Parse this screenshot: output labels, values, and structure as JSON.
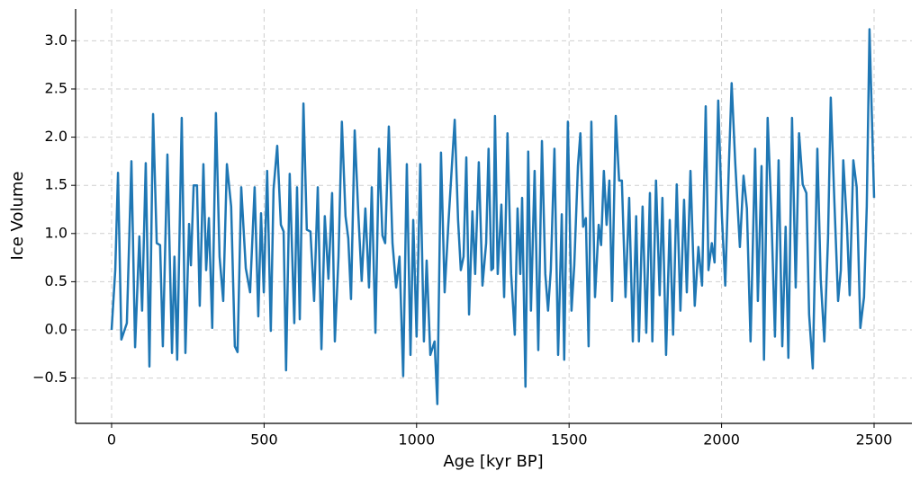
{
  "chart_data": {
    "type": "line",
    "x_label": "Age [kyr BP]",
    "y_label": "Ice Volume",
    "xlim": [
      -118,
      2624
    ],
    "ylim": [
      -0.97,
      3.33
    ],
    "xticks": [
      0,
      500,
      1000,
      1500,
      2000,
      2500
    ],
    "yticks": [
      {
        "value": -0.5,
        "label": "−0.5"
      },
      {
        "value": 0,
        "label": "0.0"
      },
      0.5,
      {
        "value": 1,
        "label": "1.0"
      },
      1.5,
      {
        "value": 2,
        "label": "2.0"
      },
      2.5,
      {
        "value": 3,
        "label": "3.0"
      }
    ],
    "grid": true,
    "x": [
      0,
      12,
      21,
      32,
      50,
      65,
      77,
      91,
      100,
      112,
      124,
      136,
      148,
      159,
      168,
      183,
      198,
      206,
      215,
      230,
      242,
      254,
      260,
      269,
      280,
      289,
      301,
      310,
      319,
      330,
      342,
      354,
      366,
      378,
      392,
      404,
      413,
      425,
      440,
      454,
      469,
      481,
      490,
      499,
      510,
      522,
      531,
      543,
      555,
      564,
      572,
      584,
      599,
      608,
      617,
      629,
      640,
      652,
      664,
      676,
      688,
      699,
      711,
      723,
      732,
      744,
      755,
      767,
      776,
      785,
      797,
      809,
      820,
      832,
      844,
      853,
      865,
      877,
      888,
      897,
      909,
      921,
      933,
      944,
      956,
      968,
      980,
      989,
      1000,
      1012,
      1024,
      1033,
      1045,
      1059,
      1068,
      1080,
      1092,
      1104,
      1118,
      1125,
      1136,
      1145,
      1154,
      1163,
      1172,
      1183,
      1192,
      1204,
      1216,
      1228,
      1236,
      1245,
      1251,
      1257,
      1266,
      1278,
      1287,
      1298,
      1310,
      1322,
      1331,
      1340,
      1346,
      1357,
      1366,
      1375,
      1387,
      1399,
      1411,
      1422,
      1431,
      1440,
      1452,
      1464,
      1476,
      1484,
      1496,
      1508,
      1517,
      1529,
      1537,
      1546,
      1555,
      1564,
      1573,
      1585,
      1597,
      1605,
      1614,
      1623,
      1632,
      1641,
      1653,
      1664,
      1673,
      1685,
      1697,
      1709,
      1720,
      1729,
      1741,
      1753,
      1765,
      1773,
      1785,
      1797,
      1806,
      1818,
      1830,
      1841,
      1853,
      1865,
      1877,
      1886,
      1898,
      1912,
      1924,
      1936,
      1948,
      1957,
      1968,
      1977,
      1989,
      2001,
      2012,
      2024,
      2033,
      2045,
      2060,
      2072,
      2083,
      2095,
      2110,
      2119,
      2131,
      2139,
      2151,
      2163,
      2175,
      2187,
      2199,
      2210,
      2219,
      2231,
      2243,
      2254,
      2266,
      2278,
      2287,
      2299,
      2314,
      2325,
      2337,
      2349,
      2358,
      2370,
      2382,
      2391,
      2399,
      2411,
      2420,
      2432,
      2443,
      2455,
      2467,
      2476,
      2485,
      2500
    ],
    "series": [
      {
        "name": "Ice Volume",
        "color": "#1f77b4",
        "values": [
          0,
          0.62,
          1.63,
          -0.1,
          0.07,
          1.75,
          -0.18,
          0.97,
          0.2,
          1.73,
          -0.38,
          2.24,
          0.9,
          0.88,
          -0.17,
          1.82,
          -0.24,
          0.76,
          -0.31,
          2.2,
          -0.24,
          1.1,
          0.67,
          1.5,
          1.5,
          0.25,
          1.72,
          0.62,
          1.16,
          0.02,
          2.25,
          0.76,
          0.3,
          1.72,
          1.28,
          -0.17,
          -0.23,
          1.48,
          0.64,
          0.39,
          1.48,
          0.14,
          1.21,
          0.39,
          1.65,
          -0.01,
          1.46,
          1.91,
          1.09,
          1.02,
          -0.42,
          1.62,
          0.07,
          1.48,
          0.11,
          2.35,
          1.04,
          1.02,
          0.3,
          1.48,
          -0.2,
          1.18,
          0.53,
          1.42,
          -0.12,
          0.76,
          2.16,
          1.18,
          0.95,
          0.32,
          2.07,
          1.2,
          0.51,
          1.26,
          0.44,
          1.48,
          -0.03,
          1.88,
          0.98,
          0.9,
          2.11,
          0.9,
          0.44,
          0.76,
          -0.48,
          1.72,
          -0.26,
          1.14,
          -0.07,
          1.72,
          -0.12,
          0.72,
          -0.26,
          -0.12,
          -0.77,
          1.84,
          0.39,
          1.09,
          1.82,
          2.18,
          1.14,
          0.62,
          0.76,
          1.79,
          0.16,
          1.23,
          0.58,
          1.74,
          0.46,
          0.9,
          1.88,
          0.62,
          0.64,
          2.22,
          0.58,
          1.3,
          0.34,
          2.04,
          0.58,
          -0.05,
          1.26,
          0.58,
          1.37,
          -0.59,
          1.85,
          0.2,
          1.65,
          -0.21,
          1.96,
          0.58,
          0.2,
          0.62,
          1.88,
          -0.26,
          1.2,
          -0.31,
          2.16,
          0.2,
          0.67,
          1.7,
          2.04,
          1.07,
          1.16,
          -0.17,
          2.16,
          0.34,
          1.09,
          0.88,
          1.65,
          1.09,
          1.55,
          0.3,
          2.22,
          1.55,
          1.55,
          0.34,
          1.37,
          -0.12,
          1.18,
          -0.12,
          1.28,
          -0.03,
          1.42,
          -0.12,
          1.55,
          0.36,
          1.37,
          -0.26,
          1.14,
          -0.05,
          1.51,
          0.2,
          1.35,
          0.39,
          1.65,
          0.25,
          0.86,
          0.46,
          2.32,
          0.62,
          0.9,
          0.7,
          2.38,
          1.18,
          0.46,
          1.72,
          2.56,
          1.72,
          0.86,
          1.6,
          1.26,
          -0.12,
          1.88,
          0.3,
          1.7,
          -0.31,
          2.2,
          1.23,
          -0.07,
          1.76,
          -0.17,
          1.07,
          -0.29,
          2.2,
          0.44,
          2.04,
          1.51,
          1.42,
          0.16,
          -0.4,
          1.88,
          0.53,
          -0.12,
          0.95,
          2.41,
          1.32,
          0.3,
          0.62,
          1.76,
          1.09,
          0.36,
          1.76,
          1.48,
          0.02,
          0.34,
          1.28,
          3.12,
          1.37
        ]
      }
    ]
  }
}
